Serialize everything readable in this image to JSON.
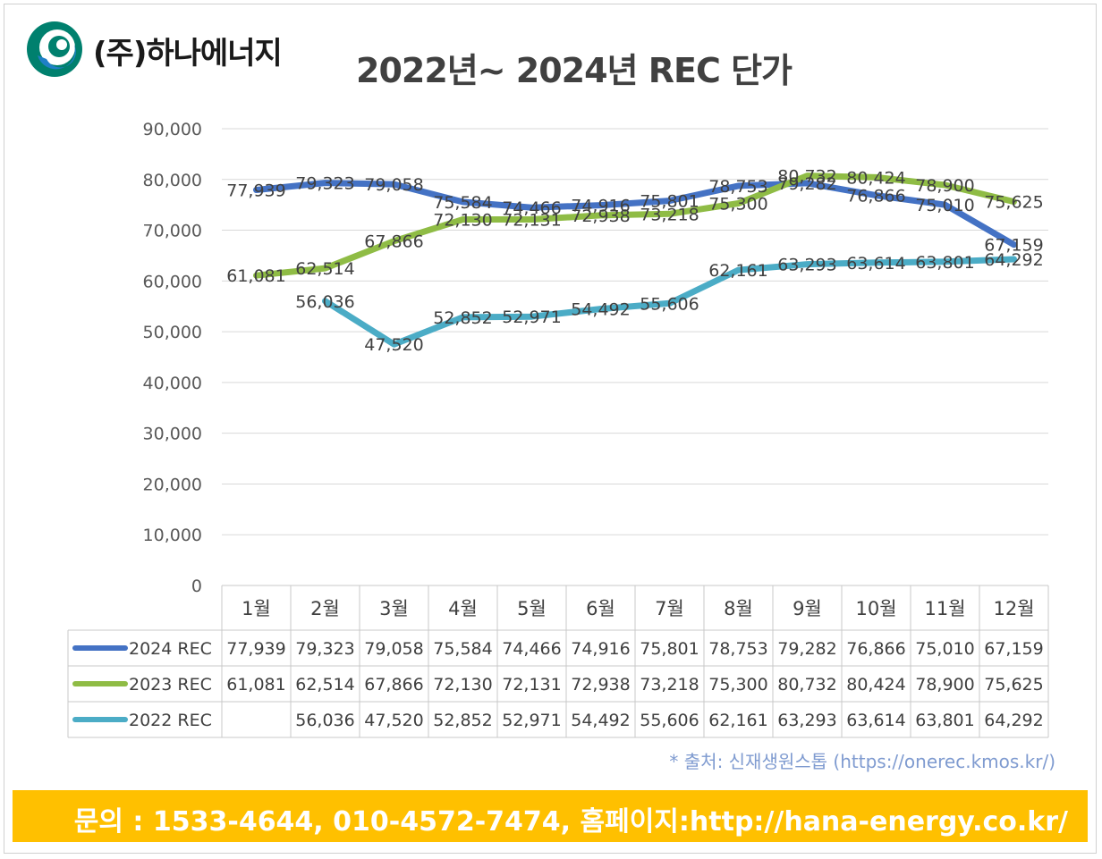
{
  "header": {
    "company": "(주)하나에너지",
    "logo_colors": [
      "#00806e",
      "#1f7fc6"
    ]
  },
  "footer": {
    "source": "* 출처: 신재생원스톱 (https://onerec.kmos.kr/)",
    "contact": "문의 : 1533-4644, 010-4572-7474,  홈페이지:http://hana-energy.co.kr/",
    "contact_bg": "#ffc000"
  },
  "chart_data": {
    "type": "line",
    "title": "2022년~ 2024년 REC 단가",
    "xlabel": "",
    "ylabel": "",
    "categories": [
      "1월",
      "2월",
      "3월",
      "4월",
      "5월",
      "6월",
      "7월",
      "8월",
      "9월",
      "10월",
      "11월",
      "12월"
    ],
    "ylim": [
      0,
      90000
    ],
    "yticks": [
      0,
      10000,
      20000,
      30000,
      40000,
      50000,
      60000,
      70000,
      80000,
      90000
    ],
    "ytick_labels": [
      "0",
      "10,000",
      "20,000",
      "30,000",
      "40,000",
      "50,000",
      "60,000",
      "70,000",
      "80,000",
      "90,000"
    ],
    "grid": true,
    "legend": "data-table",
    "series": [
      {
        "name": "2024 REC",
        "color": "#4472c4",
        "values": [
          77939,
          79323,
          79058,
          75584,
          74466,
          74916,
          75801,
          78753,
          79282,
          76866,
          75010,
          67159
        ],
        "labels": [
          "77,939",
          "79,323",
          "79,058",
          "75,584",
          "74,466",
          "74,916",
          "75,801",
          "78,753",
          "79,282",
          "76,866",
          "75,010",
          "67,159"
        ]
      },
      {
        "name": "2023 REC",
        "color": "#8fbc45",
        "values": [
          61081,
          62514,
          67866,
          72130,
          72131,
          72938,
          73218,
          75300,
          80732,
          80424,
          78900,
          75625
        ],
        "labels": [
          "61,081",
          "62,514",
          "67,866",
          "72,130",
          "72,131",
          "72,938",
          "73,218",
          "75,300",
          "80,732",
          "80,424",
          "78,900",
          "75,625"
        ]
      },
      {
        "name": "2022 REC",
        "color": "#4bacc6",
        "values": [
          null,
          56036,
          47520,
          52852,
          52971,
          54492,
          55606,
          62161,
          63293,
          63614,
          63801,
          64292
        ],
        "labels": [
          "",
          "56,036",
          "47,520",
          "52,852",
          "52,971",
          "54,492",
          "55,606",
          "62,161",
          "63,293",
          "63,614",
          "63,801",
          "64,292"
        ]
      }
    ]
  }
}
